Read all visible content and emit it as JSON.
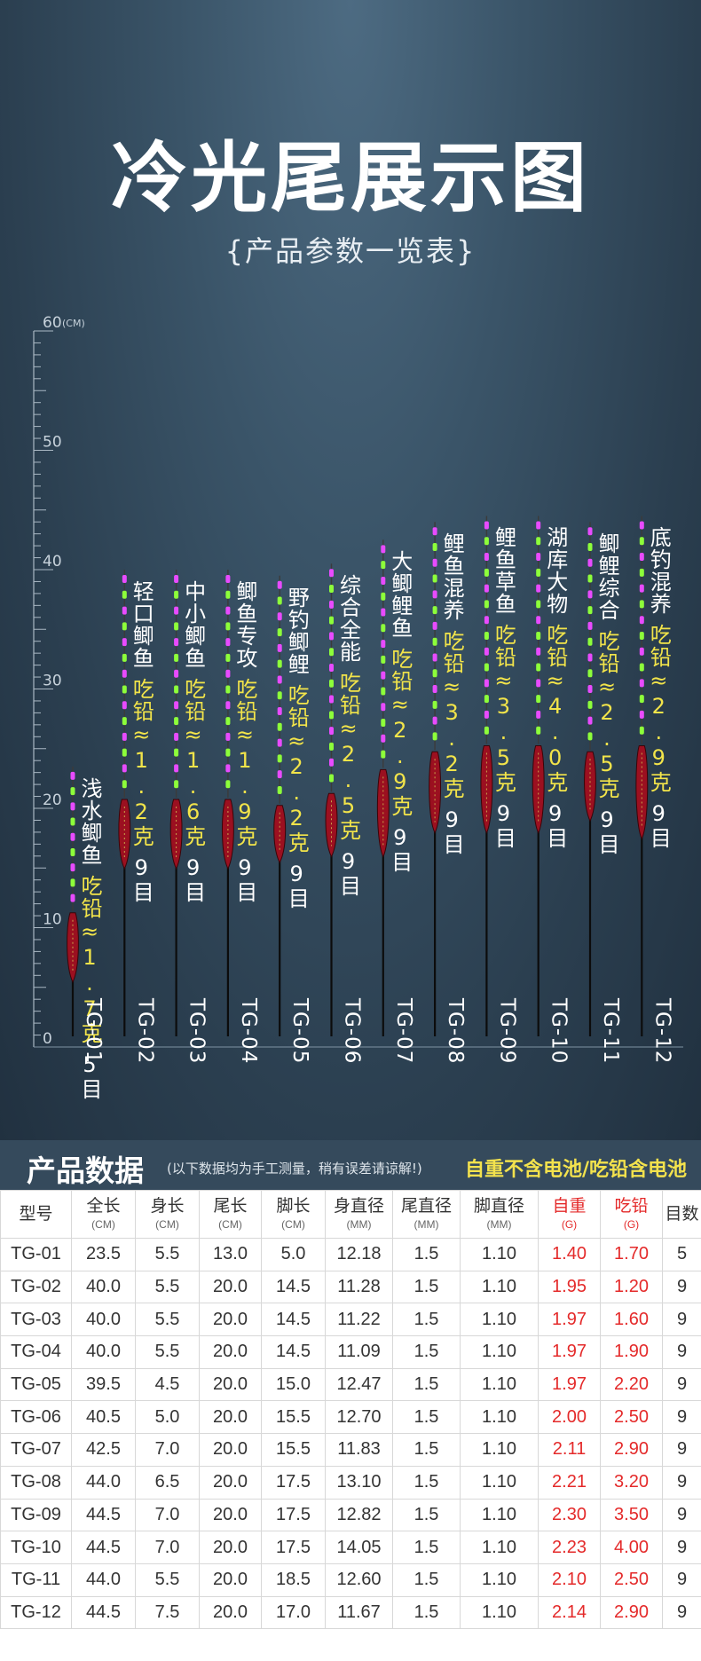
{
  "hero": {
    "title": "冷光尾展示图",
    "subtitle": "{产品参数一览表}"
  },
  "ruler": {
    "unit_label": "(CM)",
    "labels": [
      "60",
      "50",
      "40",
      "30",
      "20",
      "10",
      "0"
    ]
  },
  "products": [
    {
      "code": "TG-01",
      "name": "浅水鲫鱼",
      "weight": "吃铅≈1.7克",
      "mesh": "5目",
      "total_cm": 23.5,
      "tail_cm": 13.0,
      "body_cm": 5.5,
      "foot_cm": 5.0
    },
    {
      "code": "TG-02",
      "name": "轻口鲫鱼",
      "weight": "吃铅≈1.2克",
      "mesh": "9目",
      "total_cm": 40.0,
      "tail_cm": 20.0,
      "body_cm": 5.5,
      "foot_cm": 14.5
    },
    {
      "code": "TG-03",
      "name": "中小鲫鱼",
      "weight": "吃铅≈1.6克",
      "mesh": "9目",
      "total_cm": 40.0,
      "tail_cm": 20.0,
      "body_cm": 5.5,
      "foot_cm": 14.5
    },
    {
      "code": "TG-04",
      "name": "鲫鱼专攻",
      "weight": "吃铅≈1.9克",
      "mesh": "9目",
      "total_cm": 40.0,
      "tail_cm": 20.0,
      "body_cm": 5.5,
      "foot_cm": 14.5
    },
    {
      "code": "TG-05",
      "name": "野钓鲫鲤",
      "weight": "吃铅≈2.2克",
      "mesh": "9目",
      "total_cm": 39.5,
      "tail_cm": 20.0,
      "body_cm": 4.5,
      "foot_cm": 15.0
    },
    {
      "code": "TG-06",
      "name": "综合全能",
      "weight": "吃铅≈2.5克",
      "mesh": "9目",
      "total_cm": 40.5,
      "tail_cm": 20.0,
      "body_cm": 5.0,
      "foot_cm": 15.5
    },
    {
      "code": "TG-07",
      "name": "大鲫鲤鱼",
      "weight": "吃铅≈2.9克",
      "mesh": "9目",
      "total_cm": 42.5,
      "tail_cm": 20.0,
      "body_cm": 7.0,
      "foot_cm": 15.5
    },
    {
      "code": "TG-08",
      "name": "鲤鱼混养",
      "weight": "吃铅≈3.2克",
      "mesh": "9目",
      "total_cm": 44.0,
      "tail_cm": 20.0,
      "body_cm": 6.5,
      "foot_cm": 17.5
    },
    {
      "code": "TG-09",
      "name": "鲤鱼草鱼",
      "weight": "吃铅≈3.5克",
      "mesh": "9目",
      "total_cm": 44.5,
      "tail_cm": 20.0,
      "body_cm": 7.0,
      "foot_cm": 17.5
    },
    {
      "code": "TG-10",
      "name": "湖库大物",
      "weight": "吃铅≈4.0克",
      "mesh": "9目",
      "total_cm": 44.5,
      "tail_cm": 20.0,
      "body_cm": 7.0,
      "foot_cm": 17.5
    },
    {
      "code": "TG-11",
      "name": "鲫鲤综合",
      "weight": "吃铅≈2.5克",
      "mesh": "9目",
      "total_cm": 44.0,
      "tail_cm": 20.0,
      "body_cm": 5.5,
      "foot_cm": 18.5
    },
    {
      "code": "TG-12",
      "name": "底钓混养",
      "weight": "吃铅≈2.9克",
      "mesh": "9目",
      "total_cm": 44.5,
      "tail_cm": 20.0,
      "body_cm": 7.5,
      "foot_cm": 17.0
    }
  ],
  "data_section": {
    "title": "产品数据",
    "note": "(以下数据均为手工测量，稍有误差请谅解!)",
    "flag": "自重不含电池/吃铅含电池"
  },
  "table": {
    "headers": [
      {
        "label": "型号",
        "unit": ""
      },
      {
        "label": "全长",
        "unit": "(CM)"
      },
      {
        "label": "身长",
        "unit": "(CM)"
      },
      {
        "label": "尾长",
        "unit": "(CM)"
      },
      {
        "label": "脚长",
        "unit": "(CM)"
      },
      {
        "label": "身直径",
        "unit": "(MM)"
      },
      {
        "label": "尾直径",
        "unit": "(MM)"
      },
      {
        "label": "脚直径",
        "unit": "(MM)"
      },
      {
        "label": "自重",
        "unit": "(G)"
      },
      {
        "label": "吃铅",
        "unit": "(G)"
      },
      {
        "label": "目数",
        "unit": ""
      }
    ],
    "rows": [
      [
        "TG-01",
        "23.5",
        "5.5",
        "13.0",
        "5.0",
        "12.18",
        "1.5",
        "1.10",
        "1.40",
        "1.70",
        "5"
      ],
      [
        "TG-02",
        "40.0",
        "5.5",
        "20.0",
        "14.5",
        "11.28",
        "1.5",
        "1.10",
        "1.95",
        "1.20",
        "9"
      ],
      [
        "TG-03",
        "40.0",
        "5.5",
        "20.0",
        "14.5",
        "11.22",
        "1.5",
        "1.10",
        "1.97",
        "1.60",
        "9"
      ],
      [
        "TG-04",
        "40.0",
        "5.5",
        "20.0",
        "14.5",
        "11.09",
        "1.5",
        "1.10",
        "1.97",
        "1.90",
        "9"
      ],
      [
        "TG-05",
        "39.5",
        "4.5",
        "20.0",
        "15.0",
        "12.47",
        "1.5",
        "1.10",
        "1.97",
        "2.20",
        "9"
      ],
      [
        "TG-06",
        "40.5",
        "5.0",
        "20.0",
        "15.5",
        "12.70",
        "1.5",
        "1.10",
        "2.00",
        "2.50",
        "9"
      ],
      [
        "TG-07",
        "42.5",
        "7.0",
        "20.0",
        "15.5",
        "11.83",
        "1.5",
        "1.10",
        "2.11",
        "2.90",
        "9"
      ],
      [
        "TG-08",
        "44.0",
        "6.5",
        "20.0",
        "17.5",
        "13.10",
        "1.5",
        "1.10",
        "2.21",
        "3.20",
        "9"
      ],
      [
        "TG-09",
        "44.5",
        "7.0",
        "20.0",
        "17.5",
        "12.82",
        "1.5",
        "1.10",
        "2.30",
        "3.50",
        "9"
      ],
      [
        "TG-10",
        "44.5",
        "7.0",
        "20.0",
        "17.5",
        "14.05",
        "1.5",
        "1.10",
        "2.23",
        "4.00",
        "9"
      ],
      [
        "TG-11",
        "44.0",
        "5.5",
        "20.0",
        "18.5",
        "12.60",
        "1.5",
        "1.10",
        "2.10",
        "2.50",
        "9"
      ],
      [
        "TG-12",
        "44.5",
        "7.5",
        "20.0",
        "17.0",
        "11.67",
        "1.5",
        "1.10",
        "2.14",
        "2.90",
        "9"
      ]
    ],
    "red_columns": [
      8,
      9
    ]
  },
  "colors": {
    "glow_green": "#8dff3a",
    "glow_magenta": "#e84bff",
    "body_red": "#9b1020",
    "weight_text": "#f2e44a",
    "table_red": "#e42a2a"
  }
}
